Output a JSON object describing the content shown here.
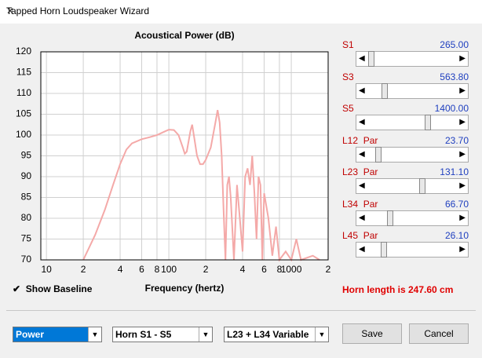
{
  "window": {
    "title": "Tapped Horn Loudspeaker Wizard"
  },
  "chart_data": {
    "type": "line",
    "title": "Acoustical Power (dB)",
    "x_label": "Frequency (hertz)",
    "x": [
      20,
      25,
      30,
      35,
      40,
      45,
      50,
      60,
      70,
      80,
      90,
      100,
      110,
      120,
      130,
      135,
      140,
      150,
      155,
      160,
      170,
      180,
      190,
      200,
      220,
      240,
      250,
      260,
      270,
      280,
      290,
      300,
      310,
      320,
      340,
      360,
      380,
      400,
      420,
      440,
      460,
      480,
      500,
      520,
      540,
      560,
      580,
      600,
      650,
      700,
      750,
      800,
      900,
      1000,
      1100,
      1200,
      1500,
      1700
    ],
    "values": [
      70,
      76,
      82,
      88,
      93,
      96.5,
      98,
      99,
      99.5,
      100,
      100.7,
      101.3,
      101.2,
      100,
      97,
      95.5,
      96,
      101,
      102.5,
      100,
      95,
      93,
      93,
      94,
      97,
      103,
      106,
      103,
      95,
      82,
      70,
      88,
      90,
      85,
      70,
      88,
      80,
      72,
      90,
      92,
      88,
      95,
      86,
      75,
      90,
      88,
      70,
      86,
      80,
      71,
      78,
      70,
      72,
      70,
      75,
      70,
      71,
      70
    ],
    "color": "#f4a9a8",
    "x_log": true,
    "grid": true,
    "xlim": [
      9,
      2000
    ],
    "xticks": [
      10,
      {
        "value": 20,
        "label": "2"
      },
      {
        "value": 40,
        "label": "4"
      },
      {
        "value": 60,
        "label": "6"
      },
      {
        "value": 80,
        "label": "8"
      },
      100,
      {
        "value": 200,
        "label": "2"
      },
      {
        "value": 400,
        "label": "4"
      },
      {
        "value": 600,
        "label": "6"
      },
      {
        "value": 800,
        "label": "8"
      },
      1000,
      {
        "value": 2000,
        "label": "2"
      }
    ],
    "ylim": [
      70,
      120
    ],
    "yticks": [
      70,
      75,
      80,
      85,
      90,
      95,
      100,
      105,
      110,
      115,
      120
    ]
  },
  "sliders": [
    {
      "name": "S1",
      "value": "265.00"
    },
    {
      "name": "S3",
      "value": "563.80"
    },
    {
      "name": "S5",
      "value": "1400.00"
    },
    {
      "name": "L12  Par",
      "value": "23.70"
    },
    {
      "name": "L23  Par",
      "value": "131.10"
    },
    {
      "name": "L34  Par",
      "value": "66.70"
    },
    {
      "name": "L45  Par",
      "value": "26.10"
    }
  ],
  "show_baseline": "Show Baseline",
  "horn_length": "Horn length is 247.60 cm",
  "dropdowns": [
    "Power",
    "Horn S1 - S5",
    "L23 + L34 Variable"
  ],
  "buttons": {
    "save": "Save",
    "cancel": "Cancel"
  }
}
